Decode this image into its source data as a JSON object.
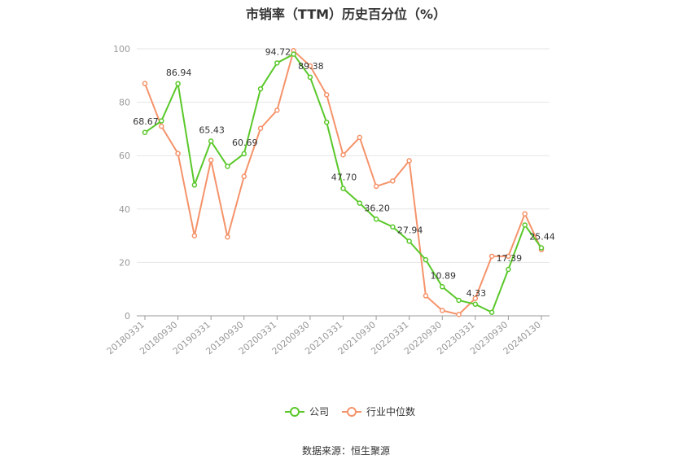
{
  "title": "市销率（TTM）历史百分位（%）",
  "source": "数据来源：恒生聚源",
  "chart_data": {
    "type": "line",
    "title": "市销率（TTM）历史百分位（%）",
    "ylim": [
      0,
      100
    ],
    "yticks": [
      "0",
      "20",
      "40",
      "60",
      "80",
      "100"
    ],
    "grid": true,
    "legend_position": "bottom",
    "x_tick_labels": [
      "20180331",
      "20180930",
      "20190331",
      "20190930",
      "20200331",
      "20200930",
      "20210331",
      "20210930",
      "20220331",
      "20220930",
      "20230331",
      "20230930",
      "20240130"
    ],
    "series": [
      {
        "name": "公司",
        "color": "#5ac82a",
        "values": [
          68.67,
          73.0,
          86.94,
          49.0,
          65.43,
          56.0,
          60.69,
          85.0,
          94.72,
          98.0,
          89.38,
          72.5,
          47.7,
          42.2,
          36.2,
          33.3,
          27.94,
          21.0,
          10.89,
          5.8,
          4.33,
          1.3,
          17.39,
          34.0,
          25.44
        ],
        "labels": [
          "68.67",
          "",
          "86.94",
          "",
          "65.43",
          "",
          "60.69",
          "",
          "94.72",
          "",
          "89.38",
          "",
          "47.70",
          "",
          "36.20",
          "",
          "27.94",
          "",
          "10.89",
          "",
          "4.33",
          "",
          "17.39",
          "",
          "25.44"
        ]
      },
      {
        "name": "行业中位数",
        "color": "#f5936a",
        "values": [
          87.0,
          71.0,
          60.8,
          30.0,
          58.3,
          29.5,
          52.2,
          70.2,
          77.0,
          99.3,
          93.6,
          82.8,
          60.3,
          66.8,
          48.5,
          50.5,
          58.1,
          7.5,
          2.0,
          0.5,
          6.5,
          22.3,
          22.3,
          38.2,
          24.8
        ]
      }
    ]
  },
  "legend": [
    {
      "label": "公司",
      "color": "#5ac82a"
    },
    {
      "label": "行业中位数",
      "color": "#f5936a"
    }
  ]
}
